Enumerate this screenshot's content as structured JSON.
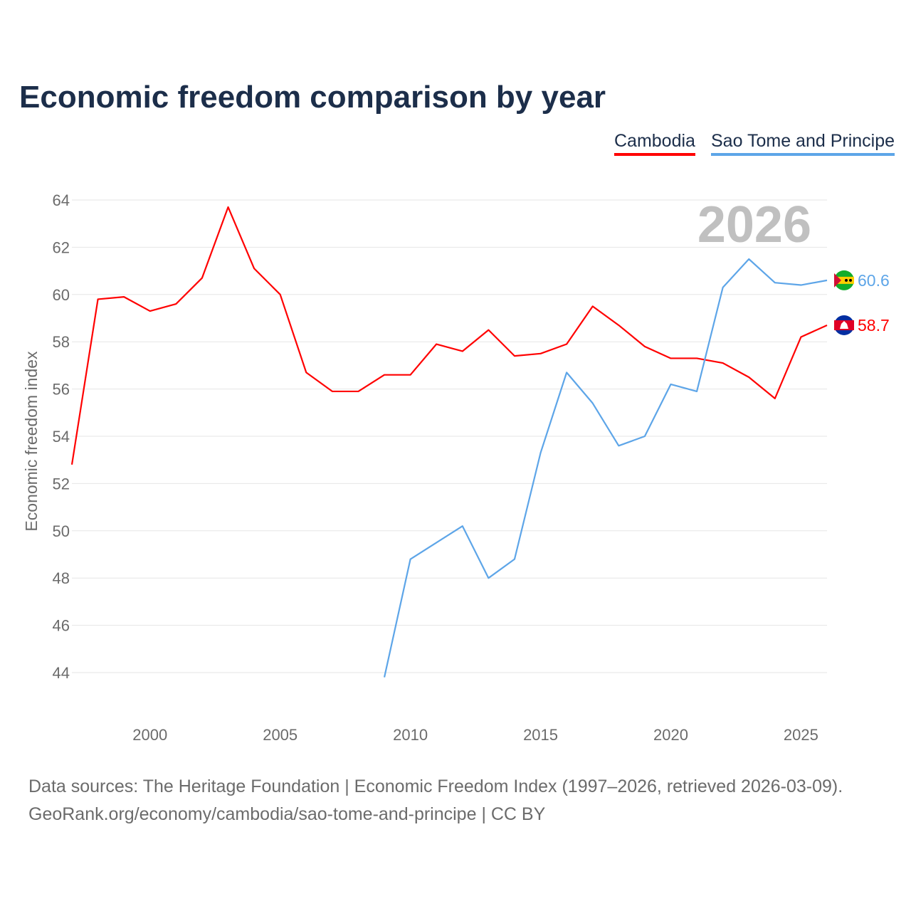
{
  "chart_data": {
    "type": "line",
    "title": "Economic freedom comparison by year",
    "xlabel": "",
    "ylabel": "Economic freedom index",
    "xlim": [
      1997,
      2026
    ],
    "ylim": [
      44,
      64
    ],
    "yticks": [
      44,
      46,
      48,
      50,
      52,
      54,
      56,
      58,
      60,
      62,
      64
    ],
    "xticks": [
      2000,
      2005,
      2010,
      2015,
      2020,
      2025
    ],
    "year_label": "2026",
    "grid": true,
    "legend_position": "top-right",
    "series": [
      {
        "name": "Cambodia",
        "color": "#ff0000",
        "end_label": "58.7",
        "flag": "cambodia-flag",
        "x": [
          1997,
          1998,
          1999,
          2000,
          2001,
          2002,
          2003,
          2004,
          2005,
          2006,
          2007,
          2008,
          2009,
          2010,
          2011,
          2012,
          2013,
          2014,
          2015,
          2016,
          2017,
          2018,
          2019,
          2020,
          2021,
          2022,
          2023,
          2024,
          2025,
          2026
        ],
        "values": [
          52.8,
          59.8,
          59.9,
          59.3,
          59.6,
          60.7,
          63.7,
          61.1,
          60.0,
          56.7,
          55.9,
          55.9,
          56.6,
          56.6,
          57.9,
          57.6,
          58.5,
          57.4,
          57.5,
          57.9,
          59.5,
          58.7,
          57.8,
          57.3,
          57.3,
          57.1,
          56.5,
          55.6,
          58.2,
          58.7
        ]
      },
      {
        "name": "Sao Tome and Principe",
        "color": "#5da5e8",
        "end_label": "60.6",
        "flag": "sao-tome-flag",
        "x": [
          2009,
          2010,
          2011,
          2012,
          2013,
          2014,
          2015,
          2016,
          2017,
          2018,
          2019,
          2020,
          2021,
          2022,
          2023,
          2024,
          2025,
          2026
        ],
        "values": [
          43.8,
          48.8,
          49.5,
          50.2,
          48.0,
          48.8,
          53.3,
          56.7,
          55.4,
          53.6,
          54.0,
          56.2,
          55.9,
          60.3,
          61.5,
          60.5,
          60.4,
          60.6
        ]
      }
    ]
  },
  "source": {
    "line1": "Data sources: The Heritage Foundation | Economic Freedom Index (1997–2026, retrieved 2026-03-09).",
    "line2": "GeoRank.org/economy/cambodia/sao-tome-and-principe | CC BY"
  }
}
